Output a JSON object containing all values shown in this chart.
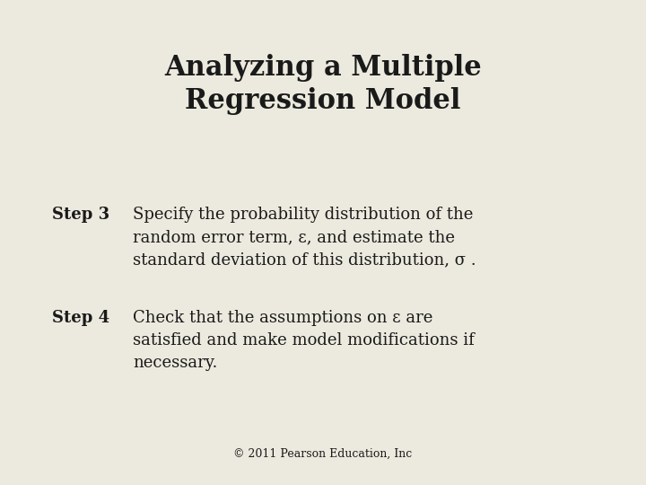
{
  "title_line1": "Analyzing a Multiple",
  "title_line2": "Regression Model",
  "background_color": "#eceade",
  "title_color": "#1a1a1a",
  "text_color": "#1a1a1a",
  "title_fontsize": 22,
  "body_fontsize": 13,
  "step_label_fontsize": 13,
  "footer_text": "© 2011 Pearson Education, Inc",
  "footer_fontsize": 9,
  "step3_label": "Step 3",
  "step3_line1": "Specify the probability distribution of the",
  "step3_line2": "random error term, ε, and estimate the",
  "step3_line3": "standard deviation of this distribution, σ .",
  "step4_label": "Step 4",
  "step4_line1": "Check that the assumptions on ε are",
  "step4_line2": "satisfied and make model modifications if",
  "step4_line3": "necessary."
}
